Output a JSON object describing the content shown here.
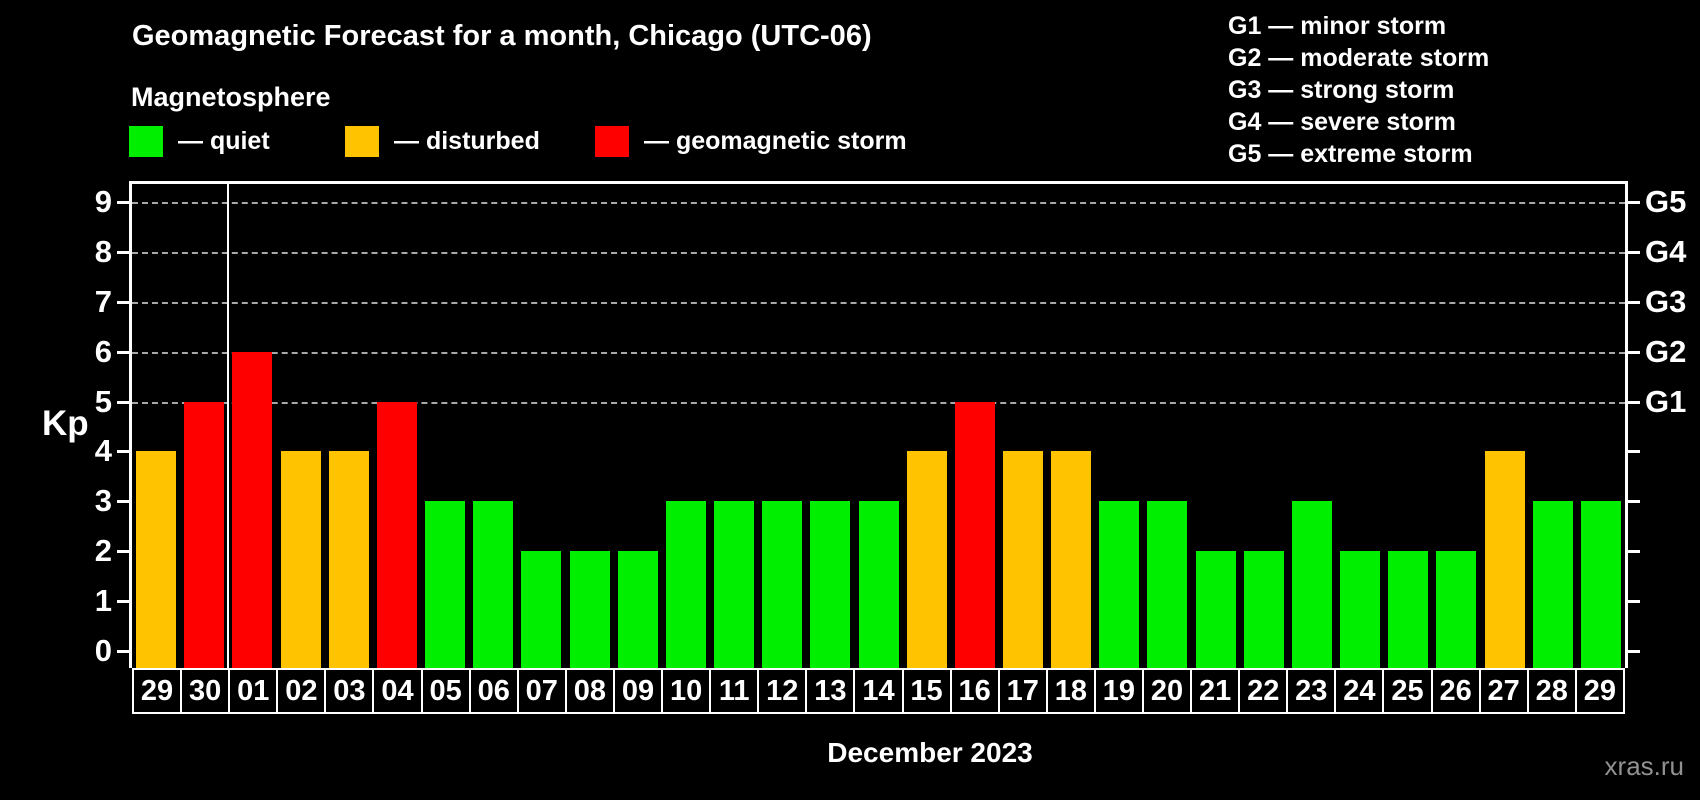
{
  "header": {
    "title": "Geomagnetic Forecast for a month, Chicago (UTC-06)",
    "subtitle": "Magnetosphere"
  },
  "colors": {
    "quiet": "#00ee00",
    "disturbed": "#ffc300",
    "storm": "#ff0000",
    "background": "#000000",
    "axis": "#ffffff",
    "grid": "#a8a8a8",
    "watermark": "#919191"
  },
  "legend": {
    "items": [
      {
        "key": "quiet",
        "swatch_color": "#00ee00",
        "label": "— quiet"
      },
      {
        "key": "disturbed",
        "swatch_color": "#ffc300",
        "label": "— disturbed"
      },
      {
        "key": "storm",
        "swatch_color": "#ff0000",
        "label": "— geomagnetic storm"
      }
    ]
  },
  "g_legend": [
    "G1 — minor storm",
    "G2 — moderate storm",
    "G3 — strong storm",
    "G4 — severe storm",
    "G5 — extreme storm"
  ],
  "axes": {
    "y_label": "Kp"
  },
  "footer": {
    "month_label": "December 2023",
    "watermark": "xras.ru"
  },
  "chart_data": {
    "type": "bar",
    "title": "Geomagnetic Forecast for a month, Chicago (UTC-06)",
    "categories": [
      "29",
      "30",
      "01",
      "02",
      "03",
      "04",
      "05",
      "06",
      "07",
      "08",
      "09",
      "10",
      "11",
      "12",
      "13",
      "14",
      "15",
      "16",
      "17",
      "18",
      "19",
      "20",
      "21",
      "22",
      "23",
      "24",
      "25",
      "26",
      "27",
      "28",
      "29"
    ],
    "values": [
      4,
      5,
      6,
      4,
      4,
      5,
      3,
      3,
      2,
      2,
      2,
      3,
      3,
      3,
      3,
      3,
      4,
      5,
      4,
      4,
      3,
      3,
      2,
      2,
      3,
      2,
      2,
      2,
      4,
      3,
      3
    ],
    "conditions": [
      "disturbed",
      "storm",
      "storm",
      "disturbed",
      "disturbed",
      "storm",
      "quiet",
      "quiet",
      "quiet",
      "quiet",
      "quiet",
      "quiet",
      "quiet",
      "quiet",
      "quiet",
      "quiet",
      "disturbed",
      "storm",
      "disturbed",
      "disturbed",
      "quiet",
      "quiet",
      "quiet",
      "quiet",
      "quiet",
      "quiet",
      "quiet",
      "quiet",
      "disturbed",
      "quiet",
      "quiet"
    ],
    "xlabel": "December 2023",
    "ylabel": "Kp",
    "ylim": [
      0,
      9
    ],
    "y_ticks": [
      0,
      1,
      2,
      3,
      4,
      5,
      6,
      7,
      8,
      9
    ],
    "grid_levels": [
      5,
      6,
      7,
      8,
      9
    ],
    "grid_style": "horizontal dashed",
    "right_axis_labels": {
      "5": "G1",
      "6": "G2",
      "7": "G3",
      "8": "G4",
      "9": "G5"
    },
    "month_boundary_after": "30",
    "legend_position": "top-left"
  }
}
